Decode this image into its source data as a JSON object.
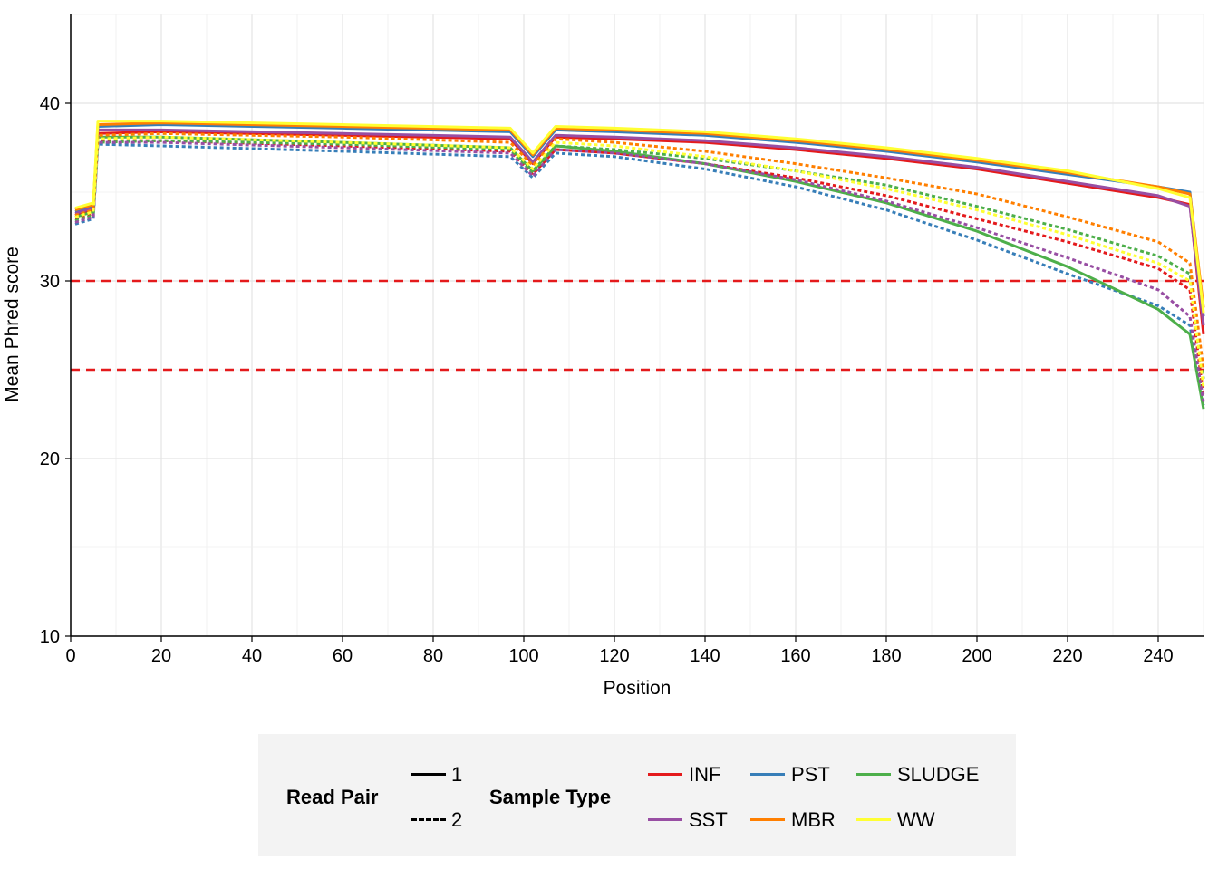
{
  "chart_data": {
    "type": "line",
    "xlabel": "Position",
    "ylabel": "Mean Phred score",
    "xlim": [
      0,
      250
    ],
    "ylim": [
      10,
      45
    ],
    "xticks": [
      "0",
      "20",
      "40",
      "60",
      "80",
      "100",
      "120",
      "140",
      "160",
      "180",
      "200",
      "220",
      "240"
    ],
    "yticks": [
      "10",
      "20",
      "30",
      "40"
    ],
    "grid": true,
    "reference_lines": [
      {
        "y": 30,
        "style": "dashed",
        "color": "#e41a1c"
      },
      {
        "y": 25,
        "style": "dashed",
        "color": "#e41a1c"
      }
    ],
    "colors": {
      "INF": "#e41a1c",
      "PST": "#377eb8",
      "SLUDGE": "#4daf4a",
      "SST": "#984ea3",
      "MBR": "#ff7f00",
      "WW": "#ffff33"
    },
    "legend_placement": "bottom",
    "series": [
      {
        "sample_type": "INF",
        "read_pair": "1",
        "x": [
          1,
          5,
          6,
          20,
          60,
          97,
          102,
          107,
          120,
          140,
          160,
          180,
          200,
          220,
          240,
          247,
          250
        ],
        "y": [
          33.7,
          34.0,
          38.3,
          38.4,
          38.2,
          38.0,
          36.6,
          38.1,
          38.0,
          37.8,
          37.4,
          36.9,
          36.3,
          35.5,
          34.7,
          34.3,
          27.0
        ]
      },
      {
        "sample_type": "INF",
        "read_pair": "2",
        "x": [
          1,
          5,
          6,
          20,
          60,
          97,
          102,
          107,
          120,
          140,
          160,
          180,
          200,
          220,
          240,
          247,
          250
        ],
        "y": [
          33.5,
          33.8,
          37.9,
          37.9,
          37.6,
          37.3,
          36.0,
          37.4,
          37.2,
          36.6,
          35.8,
          34.8,
          33.5,
          32.2,
          30.7,
          29.5,
          23.5
        ]
      },
      {
        "sample_type": "PST",
        "read_pair": "1",
        "x": [
          1,
          5,
          6,
          20,
          60,
          97,
          102,
          107,
          120,
          140,
          160,
          180,
          200,
          220,
          240,
          247,
          250
        ],
        "y": [
          33.9,
          34.2,
          38.7,
          38.8,
          38.6,
          38.4,
          37.0,
          38.5,
          38.4,
          38.2,
          37.8,
          37.3,
          36.7,
          36.0,
          35.3,
          35.0,
          28.0
        ]
      },
      {
        "sample_type": "PST",
        "read_pair": "2",
        "x": [
          1,
          5,
          6,
          20,
          60,
          97,
          102,
          107,
          120,
          140,
          160,
          180,
          200,
          220,
          240,
          247,
          250
        ],
        "y": [
          33.2,
          33.5,
          37.7,
          37.6,
          37.3,
          37.0,
          35.8,
          37.2,
          37.0,
          36.3,
          35.3,
          34.0,
          32.3,
          30.4,
          28.6,
          27.5,
          23.0
        ]
      },
      {
        "sample_type": "SLUDGE",
        "read_pair": "1",
        "x": [
          1,
          5,
          6,
          20,
          60,
          97,
          102,
          107,
          120,
          140,
          160,
          180,
          200,
          220,
          240,
          247,
          250
        ],
        "y": [
          33.6,
          33.9,
          38.1,
          38.1,
          37.8,
          37.5,
          36.2,
          37.6,
          37.3,
          36.6,
          35.6,
          34.4,
          32.8,
          30.8,
          28.4,
          27.0,
          22.8
        ]
      },
      {
        "sample_type": "SLUDGE",
        "read_pair": "2",
        "x": [
          1,
          5,
          6,
          20,
          60,
          97,
          102,
          107,
          120,
          140,
          160,
          180,
          200,
          220,
          240,
          247,
          250
        ],
        "y": [
          33.4,
          33.7,
          37.8,
          37.9,
          37.7,
          37.4,
          36.1,
          37.6,
          37.4,
          36.9,
          36.2,
          35.4,
          34.2,
          32.9,
          31.4,
          30.4,
          24.5
        ]
      },
      {
        "sample_type": "SST",
        "read_pair": "1",
        "x": [
          1,
          5,
          6,
          20,
          60,
          97,
          102,
          107,
          120,
          140,
          160,
          180,
          200,
          220,
          240,
          247,
          250
        ],
        "y": [
          33.8,
          34.1,
          38.5,
          38.5,
          38.3,
          38.1,
          36.7,
          38.2,
          38.1,
          37.9,
          37.5,
          37.0,
          36.4,
          35.6,
          34.8,
          34.2,
          27.5
        ]
      },
      {
        "sample_type": "SST",
        "read_pair": "2",
        "x": [
          1,
          5,
          6,
          20,
          60,
          97,
          102,
          107,
          120,
          140,
          160,
          180,
          200,
          220,
          240,
          247,
          250
        ],
        "y": [
          33.3,
          33.6,
          37.8,
          37.8,
          37.5,
          37.2,
          35.9,
          37.4,
          37.2,
          36.6,
          35.7,
          34.5,
          33.0,
          31.3,
          29.5,
          28.0,
          23.2
        ]
      },
      {
        "sample_type": "MBR",
        "read_pair": "1",
        "x": [
          1,
          5,
          6,
          20,
          60,
          97,
          102,
          107,
          120,
          140,
          160,
          180,
          200,
          220,
          240,
          247,
          250
        ],
        "y": [
          34.0,
          34.3,
          38.8,
          38.9,
          38.7,
          38.5,
          37.1,
          38.6,
          38.5,
          38.3,
          37.9,
          37.4,
          36.8,
          36.1,
          35.3,
          34.9,
          28.5
        ]
      },
      {
        "sample_type": "MBR",
        "read_pair": "2",
        "x": [
          1,
          5,
          6,
          20,
          60,
          97,
          102,
          107,
          120,
          140,
          160,
          180,
          200,
          220,
          240,
          247,
          250
        ],
        "y": [
          33.7,
          34.0,
          38.2,
          38.3,
          38.1,
          37.8,
          36.5,
          38.0,
          37.8,
          37.3,
          36.6,
          35.8,
          34.9,
          33.6,
          32.2,
          31.0,
          25.0
        ]
      },
      {
        "sample_type": "WW",
        "read_pair": "1",
        "x": [
          1,
          5,
          6,
          20,
          60,
          97,
          102,
          107,
          120,
          140,
          160,
          180,
          200,
          220,
          240,
          247,
          250
        ],
        "y": [
          34.1,
          34.4,
          39.0,
          39.0,
          38.8,
          38.6,
          37.2,
          38.7,
          38.6,
          38.4,
          38.0,
          37.5,
          36.9,
          36.2,
          35.2,
          34.7,
          28.2
        ]
      },
      {
        "sample_type": "WW",
        "read_pair": "2",
        "x": [
          1,
          5,
          6,
          20,
          60,
          97,
          102,
          107,
          120,
          140,
          160,
          180,
          200,
          220,
          240,
          247,
          250
        ],
        "y": [
          33.6,
          33.9,
          38.0,
          38.1,
          37.8,
          37.5,
          36.3,
          37.8,
          37.6,
          37.0,
          36.2,
          35.2,
          34.0,
          32.6,
          31.0,
          30.0,
          24.0
        ]
      }
    ]
  },
  "legend": {
    "read_pair_title": "Read Pair",
    "read_pair_items": [
      {
        "label": "1",
        "style": "solid"
      },
      {
        "label": "2",
        "style": "dashed"
      }
    ],
    "sample_type_title": "Sample Type",
    "sample_type_items": [
      {
        "label": "INF",
        "color": "#e41a1c"
      },
      {
        "label": "PST",
        "color": "#377eb8"
      },
      {
        "label": "SLUDGE",
        "color": "#4daf4a"
      },
      {
        "label": "SST",
        "color": "#984ea3"
      },
      {
        "label": "MBR",
        "color": "#ff7f00"
      },
      {
        "label": "WW",
        "color": "#ffff33"
      }
    ]
  }
}
